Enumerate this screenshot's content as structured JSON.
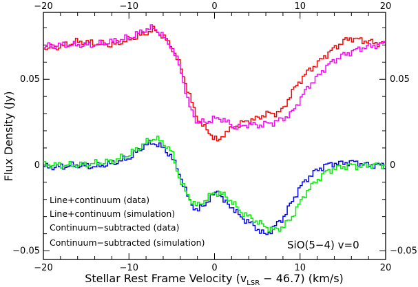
{
  "chart_data": {
    "type": "line",
    "step": true,
    "xlim": [
      -20,
      20
    ],
    "ylim": [
      -0.055,
      0.089
    ],
    "xlabel": {
      "prefix": "Stellar Rest Frame Velocity (v",
      "sub": "LSR",
      "suffix": " − 46.7) (km/s)"
    },
    "ylabel": "Flux Density (Jy)",
    "x_ticks": [
      {
        "value": -20,
        "label": "−20"
      },
      {
        "value": -10,
        "label": "−10"
      },
      {
        "value": 0,
        "label": "0"
      },
      {
        "value": 10,
        "label": "10"
      },
      {
        "value": 20,
        "label": "20"
      }
    ],
    "y_ticks": [
      {
        "value": 0.05,
        "label": "0.05"
      },
      {
        "value": 0,
        "label": "0"
      },
      {
        "value": -0.05,
        "label": "−0.05"
      }
    ],
    "annotation": "SiO(5−4) v=0",
    "legend_position": "bottom-left",
    "series": [
      {
        "name": "Line+continuum (data)",
        "color": "#ff0000",
        "points": [
          [
            -20,
            0.068
          ],
          [
            -18,
            0.069
          ],
          [
            -16,
            0.072
          ],
          [
            -14,
            0.071
          ],
          [
            -12,
            0.07
          ],
          [
            -10,
            0.073
          ],
          [
            -8,
            0.077
          ],
          [
            -7,
            0.079
          ],
          [
            -6,
            0.075
          ],
          [
            -5,
            0.069
          ],
          [
            -4,
            0.058
          ],
          [
            -3,
            0.042
          ],
          [
            -2,
            0.027
          ],
          [
            -1,
            0.021
          ],
          [
            0,
            0.016
          ],
          [
            0.5,
            0.013
          ],
          [
            1,
            0.018
          ],
          [
            2,
            0.021
          ],
          [
            3,
            0.024
          ],
          [
            4,
            0.026
          ],
          [
            5,
            0.027
          ],
          [
            6,
            0.03
          ],
          [
            7,
            0.03
          ],
          [
            8,
            0.032
          ],
          [
            9,
            0.042
          ],
          [
            10,
            0.049
          ],
          [
            11,
            0.055
          ],
          [
            12,
            0.059
          ],
          [
            13,
            0.064
          ],
          [
            14,
            0.068
          ],
          [
            15,
            0.072
          ],
          [
            16,
            0.074
          ],
          [
            17,
            0.073
          ],
          [
            18,
            0.072
          ],
          [
            19,
            0.071
          ],
          [
            20,
            0.071
          ]
        ]
      },
      {
        "name": "Line+continuum (simulation)",
        "color": "#ff00ff",
        "points": [
          [
            -20,
            0.069
          ],
          [
            -18,
            0.07
          ],
          [
            -16,
            0.07
          ],
          [
            -14,
            0.07
          ],
          [
            -12,
            0.072
          ],
          [
            -10,
            0.074
          ],
          [
            -8,
            0.079
          ],
          [
            -7,
            0.08
          ],
          [
            -6,
            0.075
          ],
          [
            -5,
            0.069
          ],
          [
            -4,
            0.057
          ],
          [
            -3,
            0.035
          ],
          [
            -2,
            0.025
          ],
          [
            -1,
            0.025
          ],
          [
            0,
            0.027
          ],
          [
            1,
            0.027
          ],
          [
            2,
            0.023
          ],
          [
            3,
            0.022
          ],
          [
            4,
            0.024
          ],
          [
            5,
            0.023
          ],
          [
            6,
            0.024
          ],
          [
            7,
            0.025
          ],
          [
            8,
            0.027
          ],
          [
            9,
            0.03
          ],
          [
            10,
            0.038
          ],
          [
            11,
            0.046
          ],
          [
            12,
            0.051
          ],
          [
            13,
            0.057
          ],
          [
            14,
            0.061
          ],
          [
            15,
            0.064
          ],
          [
            16,
            0.066
          ],
          [
            17,
            0.068
          ],
          [
            18,
            0.069
          ],
          [
            19,
            0.07
          ],
          [
            20,
            0.071
          ]
        ]
      },
      {
        "name": "Continuum−subtracted (data)",
        "color": "#0000ff",
        "points": [
          [
            -20,
            -0.001
          ],
          [
            -18,
            -0.001
          ],
          [
            -16,
            0.0
          ],
          [
            -14,
            -0.001
          ],
          [
            -12,
            0.001
          ],
          [
            -10,
            0.004
          ],
          [
            -8,
            0.012
          ],
          [
            -7,
            0.013
          ],
          [
            -6,
            0.01
          ],
          [
            -5,
            0.005
          ],
          [
            -4,
            -0.006
          ],
          [
            -3,
            -0.02
          ],
          [
            -2,
            -0.027
          ],
          [
            -1,
            -0.022
          ],
          [
            0,
            -0.017
          ],
          [
            0.5,
            -0.014
          ],
          [
            1,
            -0.021
          ],
          [
            2,
            -0.024
          ],
          [
            3,
            -0.03
          ],
          [
            4,
            -0.033
          ],
          [
            5,
            -0.037
          ],
          [
            6,
            -0.041
          ],
          [
            7,
            -0.036
          ],
          [
            8,
            -0.031
          ],
          [
            9,
            -0.022
          ],
          [
            10,
            -0.013
          ],
          [
            11,
            -0.007
          ],
          [
            12,
            -0.003
          ],
          [
            13,
            0.0
          ],
          [
            14,
            0.001
          ],
          [
            15,
            0.001
          ],
          [
            16,
            0.002
          ],
          [
            17,
            0.001
          ],
          [
            18,
            0.0
          ],
          [
            19,
            0.0
          ],
          [
            20,
            0.0
          ]
        ]
      },
      {
        "name": "Continuum−subtracted (simulation)",
        "color": "#00ee00",
        "points": [
          [
            -20,
            0.0
          ],
          [
            -18,
            0.0
          ],
          [
            -16,
            0.0
          ],
          [
            -14,
            0.001
          ],
          [
            -12,
            0.002
          ],
          [
            -10,
            0.006
          ],
          [
            -8,
            0.013
          ],
          [
            -7,
            0.016
          ],
          [
            -6,
            0.013
          ],
          [
            -5,
            0.008
          ],
          [
            -4,
            -0.009
          ],
          [
            -3,
            -0.019
          ],
          [
            -2,
            -0.024
          ],
          [
            -1,
            -0.02
          ],
          [
            0,
            -0.016
          ],
          [
            1,
            -0.017
          ],
          [
            2,
            -0.021
          ],
          [
            3,
            -0.027
          ],
          [
            4,
            -0.03
          ],
          [
            5,
            -0.033
          ],
          [
            6,
            -0.036
          ],
          [
            7,
            -0.038
          ],
          [
            8,
            -0.036
          ],
          [
            9,
            -0.031
          ],
          [
            10,
            -0.022
          ],
          [
            11,
            -0.014
          ],
          [
            12,
            -0.009
          ],
          [
            13,
            -0.004
          ],
          [
            14,
            -0.002
          ],
          [
            15,
            -0.001
          ],
          [
            16,
            0.0
          ],
          [
            17,
            -0.001
          ],
          [
            18,
            0.0
          ],
          [
            19,
            0.0
          ],
          [
            20,
            0.0
          ]
        ]
      }
    ]
  }
}
